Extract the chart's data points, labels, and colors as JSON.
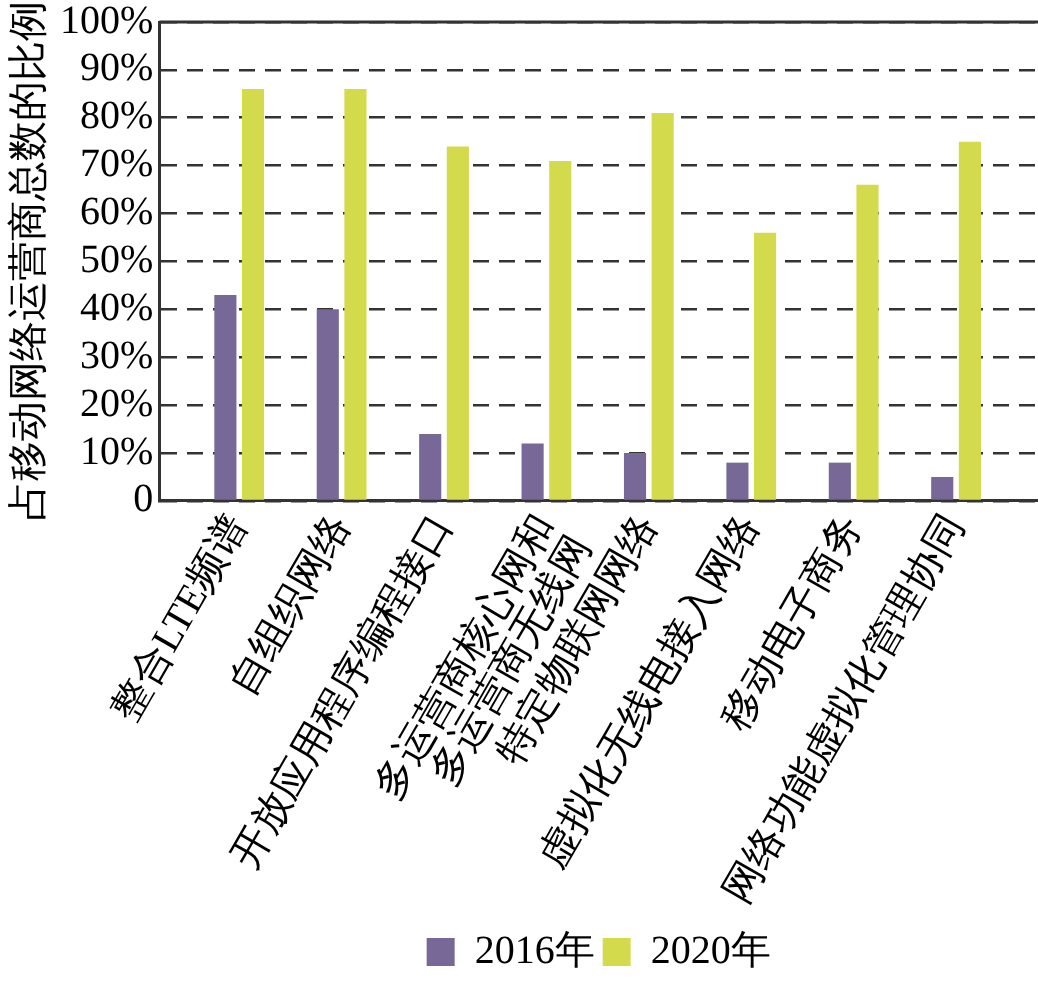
{
  "chart_data": {
    "type": "bar",
    "ylabel": "占移动网络运营商总数的比例",
    "categories": [
      "整合LTE频谱",
      "自组织网络",
      "开放应用程序编程接口",
      "多运营商核心网和\n多运营商无线网",
      "特定物联网网络",
      "虚拟化无线电接入网络",
      "移动电子商务",
      "网络功能虚拟化管理协同"
    ],
    "series": [
      {
        "name": "2016年",
        "color": "#786898",
        "values": [
          43,
          40,
          14,
          12,
          10,
          8,
          8,
          5
        ]
      },
      {
        "name": "2020年",
        "color": "#d3da4b",
        "values": [
          86,
          86,
          74,
          71,
          81,
          56,
          66,
          75
        ]
      }
    ],
    "ylim": [
      0,
      100
    ],
    "yticks": [
      0,
      {
        "value": 10,
        "label": "10%"
      },
      {
        "value": 20,
        "label": "20%"
      },
      {
        "value": 30,
        "label": "30%"
      },
      {
        "value": 40,
        "label": "40%"
      },
      {
        "value": 50,
        "label": "50%"
      },
      {
        "value": 60,
        "label": "60%"
      },
      {
        "value": 70,
        "label": "70%"
      },
      {
        "value": 80,
        "label": "80%"
      },
      {
        "value": 90,
        "label": "90%"
      },
      {
        "value": 100,
        "label": "100%"
      }
    ],
    "grid": "y",
    "legend": "bottom"
  }
}
